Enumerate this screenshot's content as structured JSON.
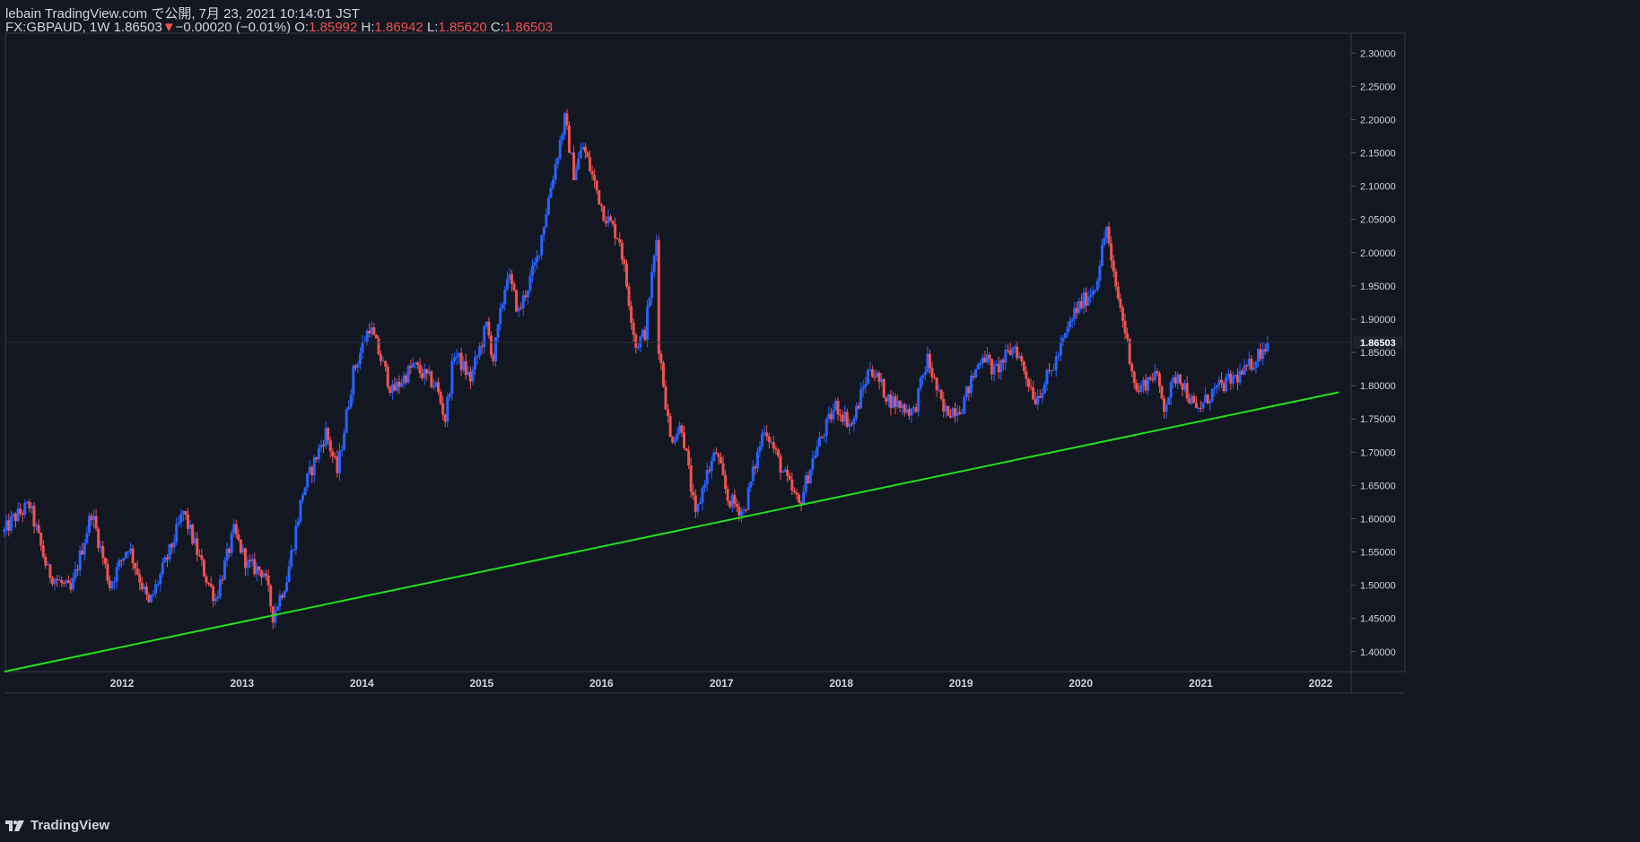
{
  "header": {
    "published": "lebain TradingView.com で公開, 7月 23, 2021 10:14:01 JST",
    "symbol_interval": "FX:GBPAUD, 1W",
    "last": "1.86503",
    "change_arrow": "▼",
    "change": "−0.00020 (−0.01%)",
    "o_label": "O:",
    "o_value": "1.85992",
    "h_label": "H:",
    "h_value": "1.86942",
    "l_label": "L:",
    "l_value": "1.85620",
    "c_label": "C:",
    "c_value": "1.86503"
  },
  "footer": {
    "brand": "TradingView",
    "logo_icon": "tradingview-logo-icon"
  },
  "colors": {
    "background": "#131722",
    "up": "#2962ff",
    "down": "#ef5350",
    "trendline": "#22e01c",
    "axis_text": "#d1d4dc"
  },
  "chart_data": {
    "type": "candlestick",
    "symbol": "FX:GBPAUD",
    "interval": "1W",
    "x_ticks": [
      "2012",
      "2013",
      "2014",
      "2015",
      "2016",
      "2017",
      "2018",
      "2019",
      "2020",
      "2021",
      "2022"
    ],
    "y_ticks": [
      "2.30000",
      "2.25000",
      "2.20000",
      "2.15000",
      "2.10000",
      "2.05000",
      "2.00000",
      "1.95000",
      "1.90000",
      "1.85000",
      "1.80000",
      "1.75000",
      "1.70000",
      "1.65000",
      "1.60000",
      "1.55000",
      "1.50000",
      "1.45000",
      "1.40000"
    ],
    "ylim": [
      1.37,
      2.33
    ],
    "last_price_label": "1.86503",
    "price_path": [
      {
        "date": "2011-01-07",
        "price": 1.58
      },
      {
        "date": "2011-02-04",
        "price": 1.6
      },
      {
        "date": "2011-03-25",
        "price": 1.62
      },
      {
        "date": "2011-05-20",
        "price": 1.52
      },
      {
        "date": "2011-07-29",
        "price": 1.49
      },
      {
        "date": "2011-09-30",
        "price": 1.61
      },
      {
        "date": "2011-11-25",
        "price": 1.5
      },
      {
        "date": "2012-01-20",
        "price": 1.56
      },
      {
        "date": "2012-03-23",
        "price": 1.47
      },
      {
        "date": "2012-05-25",
        "price": 1.55
      },
      {
        "date": "2012-07-06",
        "price": 1.61
      },
      {
        "date": "2012-09-14",
        "price": 1.51
      },
      {
        "date": "2012-10-12",
        "price": 1.48
      },
      {
        "date": "2012-12-07",
        "price": 1.58
      },
      {
        "date": "2013-01-18",
        "price": 1.53
      },
      {
        "date": "2013-03-08",
        "price": 1.52
      },
      {
        "date": "2013-04-05",
        "price": 1.455
      },
      {
        "date": "2013-05-17",
        "price": 1.51
      },
      {
        "date": "2013-07-05",
        "price": 1.64
      },
      {
        "date": "2013-09-13",
        "price": 1.73
      },
      {
        "date": "2013-10-18",
        "price": 1.67
      },
      {
        "date": "2013-12-06",
        "price": 1.82
      },
      {
        "date": "2014-01-24",
        "price": 1.89
      },
      {
        "date": "2014-04-04",
        "price": 1.79
      },
      {
        "date": "2014-06-06",
        "price": 1.83
      },
      {
        "date": "2014-08-15",
        "price": 1.8
      },
      {
        "date": "2014-09-12",
        "price": 1.75
      },
      {
        "date": "2014-10-10",
        "price": 1.85
      },
      {
        "date": "2014-11-28",
        "price": 1.81
      },
      {
        "date": "2015-01-16",
        "price": 1.89
      },
      {
        "date": "2015-02-06",
        "price": 1.84
      },
      {
        "date": "2015-03-20",
        "price": 1.97
      },
      {
        "date": "2015-04-24",
        "price": 1.91
      },
      {
        "date": "2015-06-19",
        "price": 1.99
      },
      {
        "date": "2015-07-31",
        "price": 2.1
      },
      {
        "date": "2015-08-21",
        "price": 2.15
      },
      {
        "date": "2015-09-11",
        "price": 2.2
      },
      {
        "date": "2015-10-09",
        "price": 2.12
      },
      {
        "date": "2015-11-06",
        "price": 2.16
      },
      {
        "date": "2016-01-08",
        "price": 2.06
      },
      {
        "date": "2016-02-26",
        "price": 2.02
      },
      {
        "date": "2016-04-15",
        "price": 1.86
      },
      {
        "date": "2016-05-13",
        "price": 1.88
      },
      {
        "date": "2016-06-17",
        "price": 2.02
      },
      {
        "date": "2016-06-24",
        "price": 1.86
      },
      {
        "date": "2016-07-29",
        "price": 1.72
      },
      {
        "date": "2016-09-02",
        "price": 1.74
      },
      {
        "date": "2016-10-14",
        "price": 1.6
      },
      {
        "date": "2016-11-11",
        "price": 1.66
      },
      {
        "date": "2016-12-16",
        "price": 1.7
      },
      {
        "date": "2017-01-20",
        "price": 1.63
      },
      {
        "date": "2017-03-10",
        "price": 1.61
      },
      {
        "date": "2017-05-12",
        "price": 1.74
      },
      {
        "date": "2017-07-07",
        "price": 1.67
      },
      {
        "date": "2017-08-25",
        "price": 1.62
      },
      {
        "date": "2017-10-13",
        "price": 1.7
      },
      {
        "date": "2017-12-15",
        "price": 1.77
      },
      {
        "date": "2018-02-02",
        "price": 1.74
      },
      {
        "date": "2018-03-30",
        "price": 1.83
      },
      {
        "date": "2018-05-25",
        "price": 1.78
      },
      {
        "date": "2018-08-10",
        "price": 1.76
      },
      {
        "date": "2018-09-21",
        "price": 1.84
      },
      {
        "date": "2018-11-09",
        "price": 1.76
      },
      {
        "date": "2019-01-04",
        "price": 1.77
      },
      {
        "date": "2019-03-08",
        "price": 1.85
      },
      {
        "date": "2019-04-12",
        "price": 1.82
      },
      {
        "date": "2019-06-14",
        "price": 1.86
      },
      {
        "date": "2019-08-16",
        "price": 1.78
      },
      {
        "date": "2019-10-11",
        "price": 1.83
      },
      {
        "date": "2019-12-13",
        "price": 1.91
      },
      {
        "date": "2020-02-14",
        "price": 1.95
      },
      {
        "date": "2020-03-20",
        "price": 2.04
      },
      {
        "date": "2020-04-03",
        "price": 1.98
      },
      {
        "date": "2020-05-08",
        "price": 1.9
      },
      {
        "date": "2020-06-19",
        "price": 1.79
      },
      {
        "date": "2020-08-14",
        "price": 1.82
      },
      {
        "date": "2020-09-11",
        "price": 1.77
      },
      {
        "date": "2020-10-23",
        "price": 1.82
      },
      {
        "date": "2020-12-18",
        "price": 1.76
      },
      {
        "date": "2021-02-05",
        "price": 1.79
      },
      {
        "date": "2021-04-09",
        "price": 1.81
      },
      {
        "date": "2021-05-14",
        "price": 1.82
      },
      {
        "date": "2021-07-23",
        "price": 1.865
      }
    ],
    "trendline": [
      {
        "date": "2011-01-07",
        "price": 1.37
      },
      {
        "date": "2022-02-25",
        "price": 1.79
      }
    ]
  }
}
